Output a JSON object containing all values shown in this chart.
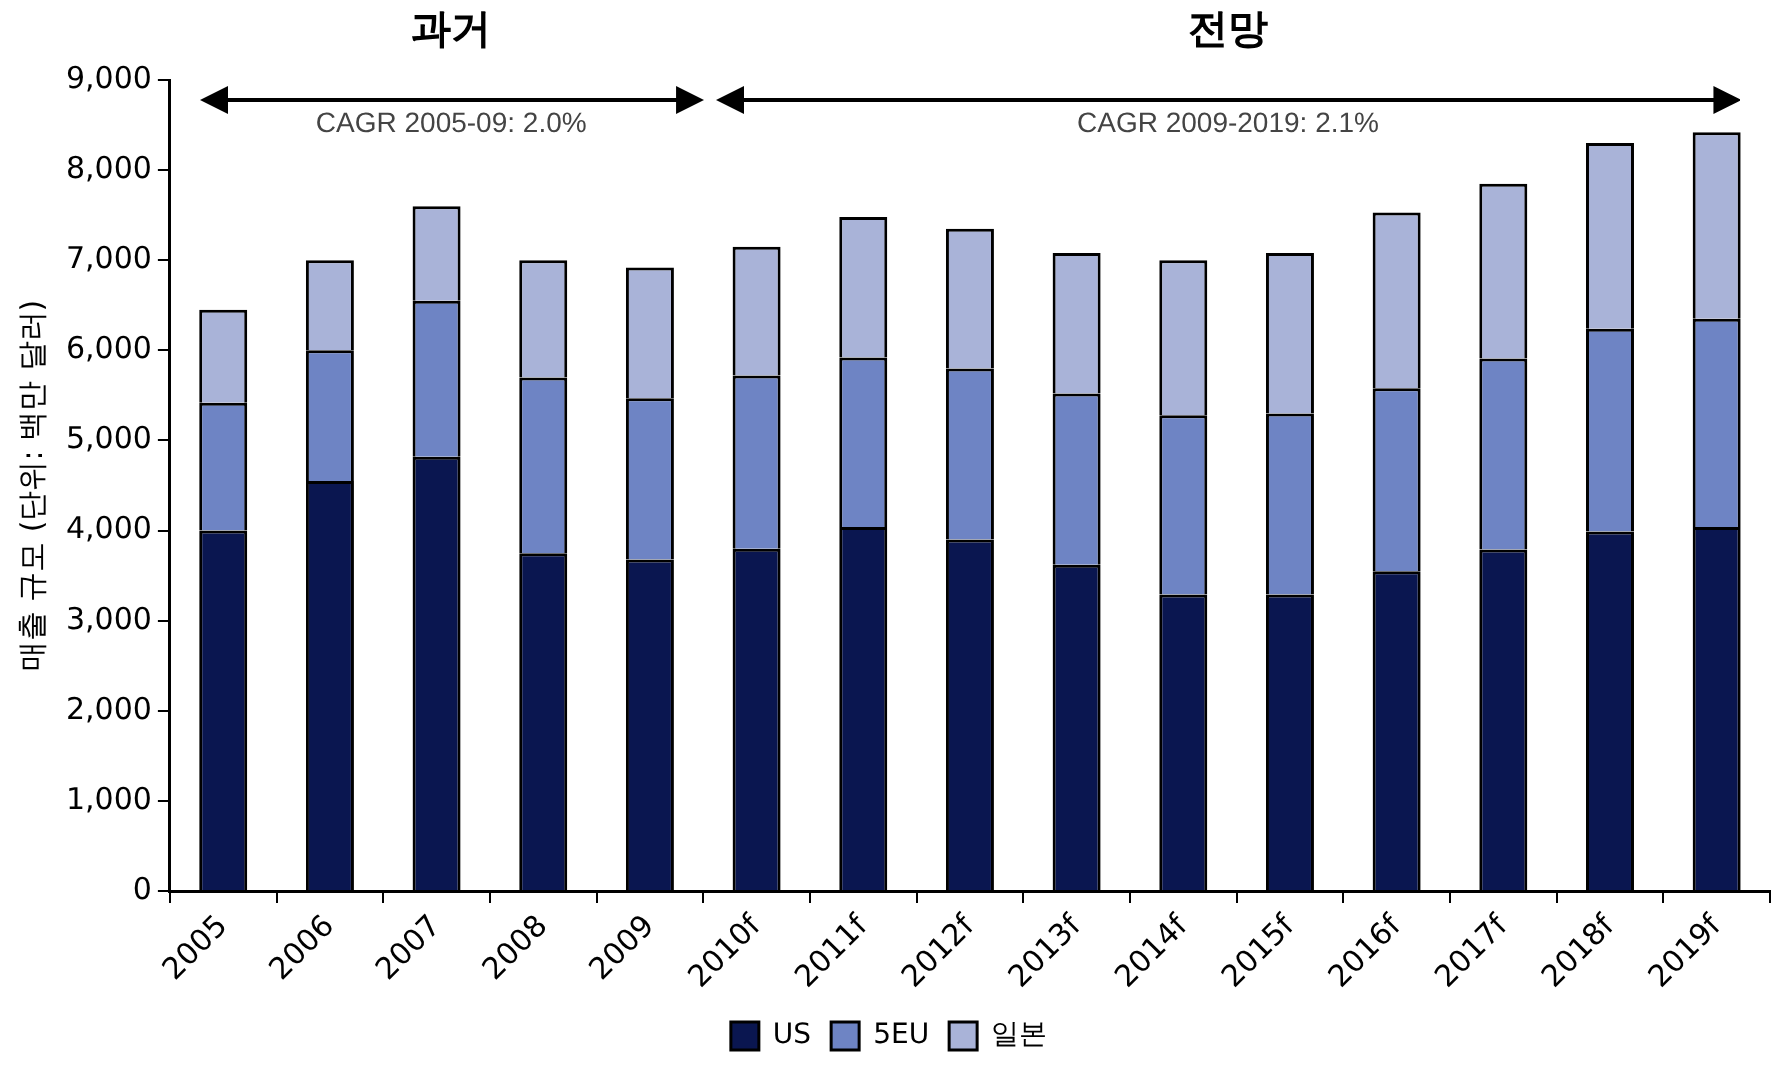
{
  "chart_data": {
    "type": "bar",
    "stacked": true,
    "ylabel": "매출 규모 (단위: 백만 달러)",
    "categories": [
      "2005",
      "2006",
      "2007",
      "2008",
      "2009",
      "2010f",
      "2011f",
      "2012f",
      "2013f",
      "2014f",
      "2015f",
      "2016f",
      "2017f",
      "2018f",
      "2019f"
    ],
    "series": [
      {
        "name": "US",
        "color": "#0a1650",
        "values": [
          4000,
          4550,
          4820,
          3750,
          3680,
          3800,
          4040,
          3900,
          3620,
          3290,
          3290,
          3550,
          3790,
          3990,
          4040
        ]
      },
      {
        "name": "5EU",
        "color": "#6e84c4",
        "values": [
          1420,
          1450,
          1730,
          1950,
          1790,
          1920,
          1880,
          1900,
          1900,
          1990,
          2010,
          2030,
          2120,
          2250,
          2310
        ]
      },
      {
        "name": "일본",
        "color": "#a9b3d8",
        "values": [
          1030,
          1000,
          1050,
          1300,
          1450,
          1430,
          1560,
          1550,
          1560,
          1720,
          1780,
          1950,
          1940,
          2060,
          2070
        ]
      }
    ],
    "ylim": [
      0,
      9000
    ],
    "yticks": [
      {
        "value": 0,
        "label": "0"
      },
      {
        "value": 1000,
        "label": "1,000"
      },
      {
        "value": 2000,
        "label": "2,000"
      },
      {
        "value": 3000,
        "label": "3,000"
      },
      {
        "value": 4000,
        "label": "4,000"
      },
      {
        "value": 5000,
        "label": "5,000"
      },
      {
        "value": 6000,
        "label": "6,000"
      },
      {
        "value": 7000,
        "label": "7,000"
      },
      {
        "value": 8000,
        "label": "8,000"
      },
      {
        "value": 9000,
        "label": "9,000"
      }
    ],
    "grid": false,
    "legend": "bottom",
    "annotations": [
      "과거",
      "전망",
      "CAGR 2005-09: 2.0%",
      "CAGR 2009-2019: 2.1%"
    ]
  }
}
